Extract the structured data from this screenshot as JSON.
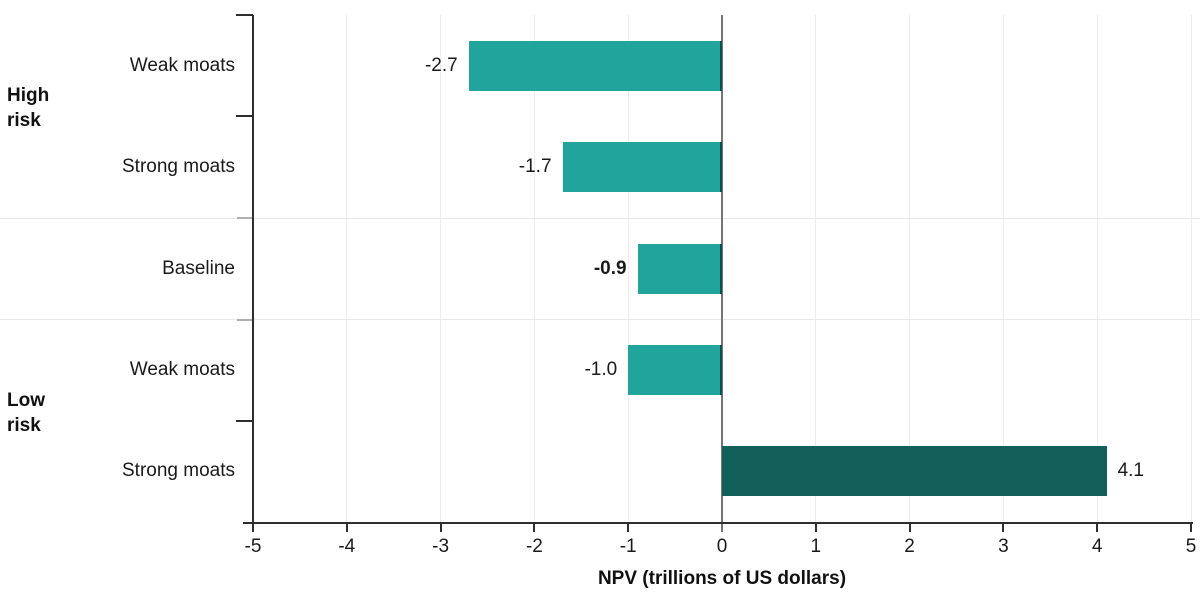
{
  "chart_data": {
    "type": "bar",
    "orientation": "horizontal",
    "title": "",
    "xlabel": "NPV (trillions of US dollars)",
    "xlim": [
      -5,
      5
    ],
    "xticks": [
      -5,
      -4,
      -3,
      -2,
      -1,
      0,
      1,
      2,
      3,
      4,
      5
    ],
    "xtick_labels": [
      "-5",
      "-4",
      "-3",
      "-2",
      "-1",
      "0",
      "1",
      "2",
      "3",
      "4",
      "5"
    ],
    "grid": "vertical-light",
    "legend_position": "none",
    "categories": [
      "Weak moats",
      "Strong moats",
      "Baseline",
      "Weak moats",
      "Strong moats"
    ],
    "values": [
      -2.7,
      -1.7,
      -0.9,
      -1.0,
      4.1
    ],
    "value_labels": [
      "-2.7",
      "-1.7",
      "-0.9",
      "-1.0",
      "4.1"
    ],
    "emphasized_row_index": 2,
    "groups": [
      {
        "label_lines": [
          "High",
          "risk"
        ],
        "first_row": 0,
        "last_row": 1
      },
      {
        "label_lines": [
          "Low",
          "risk"
        ],
        "first_row": 3,
        "last_row": 4
      }
    ],
    "colors": {
      "bar": "#20a49b",
      "bar_positive_dark": "#135f5a",
      "bar_edge_dark": "#0e4f4b",
      "axis": "#2e2e2e",
      "zero_line": "#757575",
      "gridline": "#ededed",
      "separator": "#e8e8e8",
      "separator_tick": "#b0b0b0",
      "text": "#1a1a1a"
    }
  }
}
